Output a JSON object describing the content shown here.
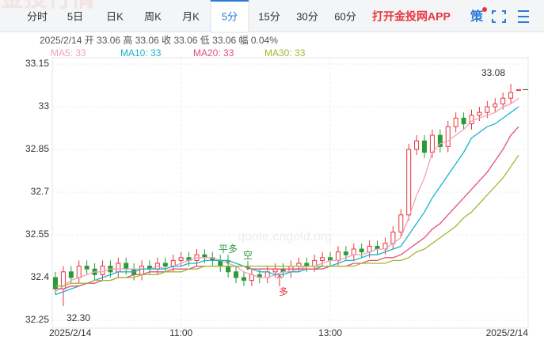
{
  "tabs": [
    "分时",
    "5日",
    "日K",
    "周K",
    "月K",
    "5分",
    "15分",
    "30分",
    "60分"
  ],
  "active_tab": "5分",
  "app_link": "打开金投网APP",
  "strategy": "策",
  "chart_data": {
    "type": "candlestick",
    "info": "2025/2/14  开 33.06  高 33.06  收 33.06  低 33.06  幅 0.04%",
    "watermark": "金投行情",
    "watermark_url": "quote.cngold.org",
    "categories": [
      "2025/2/14",
      null,
      null,
      null,
      null,
      null,
      null,
      null,
      null,
      null,
      null,
      null,
      null,
      null,
      null,
      null,
      "11:00",
      null,
      null,
      null,
      null,
      null,
      null,
      null,
      null,
      null,
      null,
      null,
      null,
      null,
      null,
      null,
      null,
      null,
      null,
      "13:00",
      null,
      null,
      null,
      null,
      null,
      null,
      null,
      null,
      null,
      null,
      null,
      null,
      null,
      null,
      null,
      null,
      null,
      null,
      null,
      null,
      null,
      null,
      null,
      "2025/2/14"
    ],
    "open": [
      32.4,
      32.36,
      32.42,
      32.4,
      32.44,
      32.43,
      32.41,
      32.44,
      32.42,
      32.45,
      32.43,
      32.41,
      32.44,
      32.43,
      32.45,
      32.44,
      32.46,
      32.47,
      32.46,
      32.48,
      32.47,
      32.46,
      32.44,
      32.42,
      32.4,
      32.39,
      32.41,
      32.4,
      32.42,
      32.43,
      32.42,
      32.44,
      32.45,
      32.44,
      32.46,
      32.47,
      32.46,
      32.49,
      32.48,
      32.5,
      32.49,
      32.51,
      32.5,
      32.52,
      32.56,
      32.62,
      32.85,
      32.88,
      32.84,
      32.9,
      32.86,
      32.93,
      32.96,
      32.94,
      32.97,
      32.98,
      33.0,
      33.01,
      33.03,
      33.06
    ],
    "high": [
      32.42,
      32.44,
      32.44,
      32.46,
      32.46,
      32.45,
      32.46,
      32.46,
      32.47,
      32.47,
      32.45,
      32.46,
      32.46,
      32.47,
      32.47,
      32.48,
      32.49,
      32.49,
      32.5,
      32.5,
      32.49,
      32.48,
      32.46,
      32.44,
      32.42,
      32.43,
      32.43,
      32.44,
      32.45,
      32.45,
      32.46,
      32.47,
      32.47,
      32.48,
      32.49,
      32.49,
      32.51,
      32.51,
      32.52,
      32.52,
      32.53,
      32.53,
      32.54,
      32.58,
      32.64,
      32.87,
      32.9,
      32.9,
      32.92,
      32.92,
      32.95,
      32.98,
      32.98,
      32.99,
      33.0,
      33.02,
      33.03,
      33.05,
      33.08,
      33.06
    ],
    "low": [
      32.34,
      32.3,
      32.38,
      32.38,
      32.41,
      32.39,
      32.39,
      32.4,
      32.4,
      32.41,
      32.39,
      32.39,
      32.41,
      32.41,
      32.42,
      32.42,
      32.44,
      32.44,
      32.44,
      32.45,
      32.44,
      32.42,
      32.4,
      32.38,
      32.37,
      32.37,
      32.38,
      32.38,
      32.4,
      32.4,
      32.4,
      32.42,
      32.42,
      32.42,
      32.44,
      32.44,
      32.44,
      32.46,
      32.46,
      32.47,
      32.47,
      32.48,
      32.48,
      32.5,
      32.54,
      32.6,
      32.83,
      32.82,
      32.82,
      32.84,
      32.84,
      32.91,
      32.92,
      32.92,
      32.95,
      32.96,
      32.98,
      32.99,
      33.01,
      33.06
    ],
    "close": [
      32.36,
      32.42,
      32.4,
      32.44,
      32.43,
      32.41,
      32.44,
      32.42,
      32.45,
      32.43,
      32.41,
      32.44,
      32.43,
      32.45,
      32.44,
      32.46,
      32.47,
      32.46,
      32.48,
      32.47,
      32.46,
      32.44,
      32.42,
      32.4,
      32.39,
      32.41,
      32.4,
      32.42,
      32.43,
      32.42,
      32.44,
      32.45,
      32.44,
      32.46,
      32.47,
      32.46,
      32.49,
      32.48,
      32.5,
      32.49,
      32.51,
      32.5,
      32.52,
      32.56,
      32.62,
      32.85,
      32.88,
      32.84,
      32.9,
      32.86,
      32.93,
      32.96,
      32.94,
      32.97,
      32.98,
      33.0,
      33.01,
      33.03,
      33.05,
      33.06
    ],
    "up_color": "#e8353a",
    "down_color": "#2b9b3a",
    "series": [
      {
        "name": "MA5: 33",
        "color": "#f0a3ba",
        "values": [
          32.35,
          32.37,
          32.39,
          32.4,
          32.41,
          32.42,
          32.42,
          32.43,
          32.43,
          32.43,
          32.43,
          32.43,
          32.43,
          32.44,
          32.43,
          32.44,
          32.45,
          32.46,
          32.47,
          32.47,
          32.47,
          32.46,
          32.45,
          32.44,
          32.42,
          32.41,
          32.4,
          32.4,
          32.41,
          32.42,
          32.42,
          32.43,
          32.44,
          32.44,
          32.45,
          32.46,
          32.46,
          32.47,
          32.48,
          32.48,
          32.49,
          32.5,
          32.5,
          32.52,
          32.54,
          32.61,
          32.69,
          32.75,
          32.84,
          32.87,
          32.88,
          32.9,
          32.92,
          32.95,
          32.96,
          32.97,
          32.98,
          33.0,
          33.01,
          33.03
        ]
      },
      {
        "name": "MA10: 33",
        "color": "#1bb3c9",
        "values": [
          32.34,
          32.35,
          32.36,
          32.37,
          32.38,
          32.39,
          32.4,
          32.41,
          32.42,
          32.42,
          32.42,
          32.43,
          32.43,
          32.43,
          32.43,
          32.44,
          32.44,
          32.45,
          32.45,
          32.46,
          32.46,
          32.46,
          32.46,
          32.45,
          32.44,
          32.43,
          32.42,
          32.42,
          32.41,
          32.41,
          32.42,
          32.42,
          32.43,
          32.43,
          32.44,
          32.44,
          32.45,
          32.46,
          32.46,
          32.47,
          32.48,
          32.48,
          32.49,
          32.5,
          32.51,
          32.55,
          32.59,
          32.63,
          32.68,
          32.72,
          32.76,
          32.8,
          32.84,
          32.89,
          32.91,
          32.93,
          32.94,
          32.96,
          32.98,
          33.0
        ]
      },
      {
        "name": "MA20: 33",
        "color": "#e2507c",
        "values": [
          32.36,
          32.36,
          32.37,
          32.37,
          32.38,
          32.38,
          32.39,
          32.39,
          32.4,
          32.4,
          32.41,
          32.41,
          32.42,
          32.42,
          32.42,
          32.43,
          32.43,
          32.43,
          32.44,
          32.44,
          32.44,
          32.44,
          32.44,
          32.44,
          32.44,
          32.43,
          32.43,
          32.43,
          32.43,
          32.43,
          32.43,
          32.43,
          32.43,
          32.43,
          32.43,
          32.44,
          32.44,
          32.44,
          32.45,
          32.45,
          32.46,
          32.46,
          32.47,
          32.47,
          32.48,
          32.5,
          32.52,
          32.54,
          32.57,
          32.59,
          32.62,
          32.65,
          32.68,
          32.71,
          32.74,
          32.77,
          32.81,
          32.85,
          32.9,
          32.93
        ]
      },
      {
        "name": "MA30: 33",
        "color": "#a3b82e",
        "values": [
          32.37,
          32.37,
          32.38,
          32.38,
          32.38,
          32.39,
          32.39,
          32.39,
          32.4,
          32.4,
          32.4,
          32.41,
          32.41,
          32.41,
          32.42,
          32.42,
          32.42,
          32.43,
          32.43,
          32.44,
          32.44,
          32.44,
          32.44,
          32.44,
          32.44,
          32.44,
          32.44,
          32.44,
          32.44,
          32.44,
          32.44,
          32.44,
          32.44,
          32.44,
          32.44,
          32.44,
          32.44,
          32.44,
          32.44,
          32.45,
          32.45,
          32.45,
          32.45,
          32.46,
          32.46,
          32.47,
          32.49,
          32.5,
          32.52,
          32.54,
          32.56,
          32.58,
          32.61,
          32.63,
          32.66,
          32.69,
          32.72,
          32.75,
          32.79,
          32.83
        ]
      }
    ],
    "ylim": [
      32.25,
      33.15
    ],
    "yticks": [
      32.25,
      32.4,
      32.55,
      32.7,
      32.85,
      33,
      33.15
    ],
    "grid": true,
    "annotations": [
      "33.08",
      "32.30",
      "平多",
      "空",
      "多"
    ]
  }
}
